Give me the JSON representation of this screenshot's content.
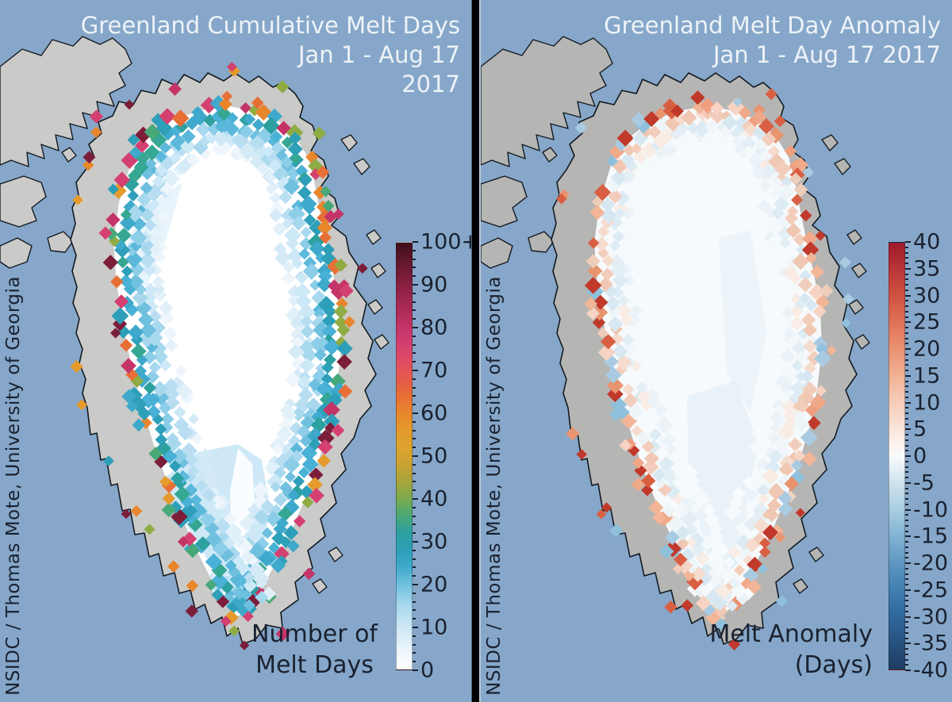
{
  "figure": {
    "credit": "NSIDC / Thomas Mote, University of Georgia",
    "colors": {
      "sea": "#86a7c9",
      "land_left": "#cacac8",
      "land_right": "#b5b5b4",
      "coast_outline": "#131920",
      "title_text": "#eef3f8",
      "ink_text": "#1a2130",
      "ice_left": "#ffffff",
      "ice_right": "#f7fafc",
      "south_wash_left": "#c9e6f6",
      "ridge_white": "#ffffff",
      "wash_right": "#e3eef6"
    }
  },
  "panels": [
    {
      "id": "cumulative-melt-days",
      "title_lines": [
        "Greenland Cumulative Melt Days",
        "Jan 1 - Aug 17",
        "2017"
      ],
      "caption_lines": [
        "Number of",
        "Melt Days"
      ],
      "colorbar": {
        "label": "Number of Melt Days",
        "range_min": 0,
        "range_max": 100,
        "ticks": [
          "100+",
          "90",
          "80",
          "70",
          "60",
          "50",
          "40",
          "30",
          "20",
          "10",
          "0"
        ],
        "minor_per_major": 4,
        "stops_bottom_to_top": [
          {
            "v": 0,
            "c": "#ffffff"
          },
          {
            "v": 5,
            "c": "#e9f4fb"
          },
          {
            "v": 10,
            "c": "#cde8f6"
          },
          {
            "v": 15,
            "c": "#a8d8ee"
          },
          {
            "v": 20,
            "c": "#6fc0de"
          },
          {
            "v": 24,
            "c": "#3fa9cc"
          },
          {
            "v": 28,
            "c": "#2e9fb8"
          },
          {
            "v": 32,
            "c": "#2da0a0"
          },
          {
            "v": 36,
            "c": "#49a878"
          },
          {
            "v": 40,
            "c": "#7aaa4e"
          },
          {
            "v": 44,
            "c": "#a8a43c"
          },
          {
            "v": 48,
            "c": "#c9a233"
          },
          {
            "v": 52,
            "c": "#dda42e"
          },
          {
            "v": 56,
            "c": "#e59a2b"
          },
          {
            "v": 60,
            "c": "#e8862c"
          },
          {
            "v": 64,
            "c": "#e76f35"
          },
          {
            "v": 68,
            "c": "#e65a4a"
          },
          {
            "v": 72,
            "c": "#e04e62"
          },
          {
            "v": 76,
            "c": "#d44070"
          },
          {
            "v": 80,
            "c": "#c43468"
          },
          {
            "v": 84,
            "c": "#ad2b58"
          },
          {
            "v": 88,
            "c": "#962449"
          },
          {
            "v": 92,
            "c": "#7c1d3a"
          },
          {
            "v": 96,
            "c": "#5e162a"
          },
          {
            "v": 100,
            "c": "#3f0f1b"
          }
        ]
      },
      "map_palette": {
        "interior": "#ffffff",
        "rings": [
          [
            "#2e9fb8",
            "#2e9fb8",
            "#49a878",
            "#8fac44",
            "#e59a2b",
            "#e8862c",
            "#e76f35",
            "#d44070",
            "#c43468",
            "#7c1d3a",
            "#3fa9cc"
          ],
          [
            "#2e9fb8",
            "#3fa9cc",
            "#2da0a0",
            "#49b0d6",
            "#35a792"
          ],
          [
            "#6fc0de",
            "#8ccde8",
            "#a8d8ee",
            "#5bb8da"
          ],
          [
            "#b9def2",
            "#cde8f6",
            "#a8d8ee"
          ],
          [
            "#e2f0fa",
            "#eef6fc",
            "#d5eaf7"
          ]
        ],
        "scatter": [
          "#d44070",
          "#c43468",
          "#e8862c",
          "#e59a2b",
          "#7c1d3a",
          "#2e9fb8",
          "#8fac44"
        ]
      }
    },
    {
      "id": "melt-day-anomaly",
      "title_lines": [
        "Greenland Melt Day Anomaly",
        "Jan 1 - Aug 17 2017"
      ],
      "caption_lines": [
        "Melt Anomaly",
        "(Days)"
      ],
      "colorbar": {
        "label": "Melt Anomaly (Days)",
        "range_min": -40,
        "range_max": 40,
        "ticks": [
          "40",
          "35",
          "30",
          "25",
          "20",
          "15",
          "10",
          "5",
          "0",
          "-5",
          "-10",
          "-15",
          "-20",
          "-25",
          "-30",
          "-35",
          "-40"
        ],
        "minor_per_major": 4,
        "stops_bottom_to_top": [
          {
            "v": -40,
            "c": "#1f3d63"
          },
          {
            "v": -35,
            "c": "#27527f"
          },
          {
            "v": -30,
            "c": "#2f689c"
          },
          {
            "v": -25,
            "c": "#417fb0"
          },
          {
            "v": -20,
            "c": "#5e97c1"
          },
          {
            "v": -15,
            "c": "#82b2d3"
          },
          {
            "v": -10,
            "c": "#a8cde2"
          },
          {
            "v": -5,
            "c": "#cfe3ee"
          },
          {
            "v": -2,
            "c": "#e8f1f6"
          },
          {
            "v": 0,
            "c": "#f9fbfc"
          },
          {
            "v": 2,
            "c": "#fdf4ef"
          },
          {
            "v": 5,
            "c": "#fae5da"
          },
          {
            "v": 10,
            "c": "#f6cdb9"
          },
          {
            "v": 15,
            "c": "#f1b295"
          },
          {
            "v": 20,
            "c": "#ea9372"
          },
          {
            "v": 25,
            "c": "#df7256"
          },
          {
            "v": 30,
            "c": "#d05242"
          },
          {
            "v": 35,
            "c": "#b93537"
          },
          {
            "v": 40,
            "c": "#9e1b2b"
          }
        ]
      },
      "map_palette": {
        "interior": "#f7fafc",
        "rings": [
          [
            "#e8946f",
            "#ef9f7f",
            "#f2b597",
            "#d95f43",
            "#c0392b",
            "#f6d3c2",
            "#a9cbe2",
            "#8fc0dc",
            "#f0a988",
            "#eecdb9"
          ],
          [
            "#f5dccf",
            "#f0c7b2",
            "#d8e8f2",
            "#eef5f9",
            "#f3cdbb"
          ],
          [
            "#f0f6fa",
            "#e4eef5",
            "#f8ece4",
            "#dcebf4"
          ],
          [
            "#f4f9fc",
            "#ecf3f8"
          ],
          [
            "#f8fbfd",
            "#f6fafc"
          ]
        ],
        "scatter": [
          "#c0392b",
          "#d95f43",
          "#e8946f",
          "#8fc0dc",
          "#a9cbe2"
        ]
      }
    }
  ]
}
